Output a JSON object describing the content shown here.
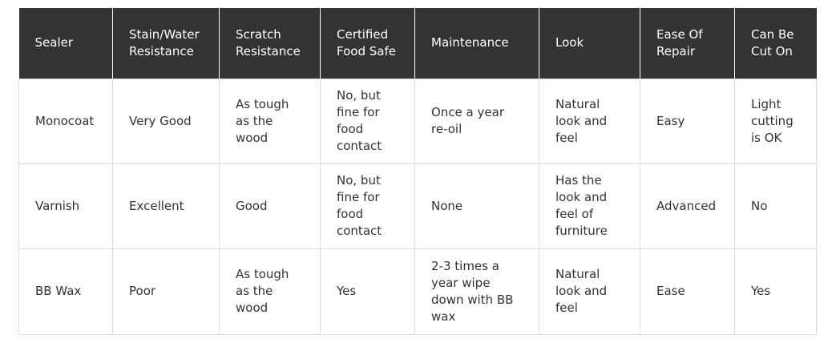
{
  "table": {
    "headers": [
      "Sealer",
      "Stain/Water Resistance",
      "Scratch Resistance",
      "Certified Food Safe",
      "Maintenance",
      "Look",
      "Ease Of Repair",
      "Can Be Cut On"
    ],
    "rows": [
      [
        "Monocoat",
        "Very Good",
        "As tough as the wood",
        "No, but fine for food contact",
        "Once a year re-oil",
        "Natural look and feel",
        "Easy",
        "Light cutting is OK"
      ],
      [
        "Varnish",
        "Excellent",
        "Good",
        "No, but fine for food contact",
        "None",
        "Has the look and feel of furniture",
        "Advanced",
        "No"
      ],
      [
        "BB Wax",
        "Poor",
        "As tough as the wood",
        "Yes",
        "2-3 times a year wipe down with BB wax",
        "Natural look and feel",
        "Ease",
        "Yes"
      ]
    ]
  }
}
